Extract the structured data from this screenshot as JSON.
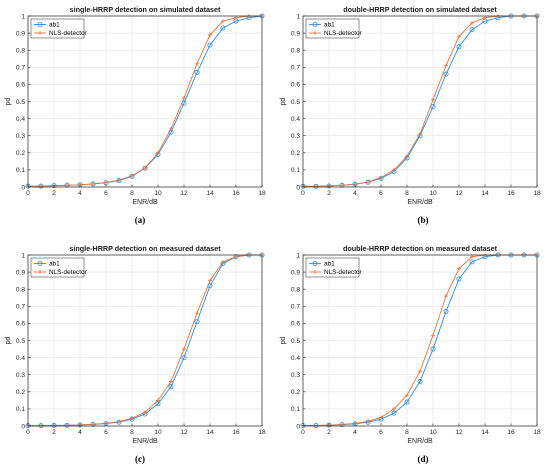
{
  "chart_data": [
    {
      "type": "line",
      "caption": "(a)",
      "title": "single-HRRP detection on simulated dataset",
      "xlabel": "ENR/dB",
      "ylabel": "pd",
      "xlim": [
        0,
        18
      ],
      "ylim": [
        0,
        1
      ],
      "xticks": [
        0,
        2,
        4,
        6,
        8,
        10,
        12,
        14,
        16,
        18
      ],
      "yticks": [
        0,
        0.1,
        0.2,
        0.3,
        0.4,
        0.5,
        0.6,
        0.7,
        0.8,
        0.9,
        1
      ],
      "grid": true,
      "legend_position": "top-left",
      "x": [
        0,
        1,
        2,
        3,
        4,
        5,
        6,
        7,
        8,
        9,
        10,
        11,
        12,
        13,
        14,
        15,
        16,
        17,
        18
      ],
      "series": [
        {
          "name": "ab1",
          "color": "#2f8fd8",
          "marker": "circle",
          "values": [
            0.005,
            0.005,
            0.008,
            0.01,
            0.013,
            0.018,
            0.025,
            0.037,
            0.062,
            0.11,
            0.19,
            0.32,
            0.49,
            0.67,
            0.83,
            0.93,
            0.97,
            0.99,
            1.0
          ]
        },
        {
          "name": "NLS-detector",
          "color": "#e8743b",
          "marker": "plus",
          "values": [
            0.005,
            0.005,
            0.008,
            0.01,
            0.013,
            0.018,
            0.026,
            0.04,
            0.066,
            0.11,
            0.2,
            0.34,
            0.52,
            0.72,
            0.89,
            0.97,
            0.99,
            1.0,
            1.0
          ]
        }
      ]
    },
    {
      "type": "line",
      "caption": "(b)",
      "title": "double-HRRP detection on simulated dataset",
      "xlabel": "ENR/dB",
      "ylabel": "pd",
      "xlim": [
        0,
        18
      ],
      "ylim": [
        0,
        1
      ],
      "xticks": [
        0,
        2,
        4,
        6,
        8,
        10,
        12,
        14,
        16,
        18
      ],
      "yticks": [
        0,
        0.1,
        0.2,
        0.3,
        0.4,
        0.5,
        0.6,
        0.7,
        0.8,
        0.9,
        1
      ],
      "grid": true,
      "legend_position": "top-left",
      "x": [
        0,
        1,
        2,
        3,
        4,
        5,
        6,
        7,
        8,
        9,
        10,
        11,
        12,
        13,
        14,
        15,
        16,
        17,
        18
      ],
      "series": [
        {
          "name": "ab1",
          "color": "#2f8fd8",
          "marker": "circle",
          "values": [
            0.004,
            0.004,
            0.006,
            0.01,
            0.016,
            0.028,
            0.05,
            0.09,
            0.17,
            0.3,
            0.47,
            0.66,
            0.82,
            0.92,
            0.97,
            0.99,
            1.0,
            1.0,
            1.0
          ]
        },
        {
          "name": "NLS-detector",
          "color": "#e8743b",
          "marker": "plus",
          "values": [
            0.004,
            0.004,
            0.006,
            0.01,
            0.016,
            0.03,
            0.055,
            0.1,
            0.18,
            0.31,
            0.51,
            0.71,
            0.88,
            0.96,
            0.99,
            1.0,
            1.0,
            1.0,
            1.0
          ]
        }
      ]
    },
    {
      "type": "line",
      "caption": "(c)",
      "title": "single-HRRP detection on measured dataset",
      "xlabel": "ENR/dB",
      "ylabel": "pd",
      "xlim": [
        0,
        18
      ],
      "ylim": [
        0,
        1
      ],
      "xticks": [
        0,
        2,
        4,
        6,
        8,
        10,
        12,
        14,
        16,
        18
      ],
      "yticks": [
        0,
        0.1,
        0.2,
        0.3,
        0.4,
        0.5,
        0.6,
        0.7,
        0.8,
        0.9,
        1
      ],
      "grid": true,
      "legend_position": "top-left",
      "x": [
        0,
        1,
        2,
        3,
        4,
        5,
        6,
        7,
        8,
        9,
        10,
        11,
        12,
        13,
        14,
        15,
        16,
        17,
        18
      ],
      "series": [
        {
          "name": "ab1",
          "color": "#2f8fd8",
          "marker": "circle",
          "values": [
            0.002,
            0.002,
            0.003,
            0.004,
            0.006,
            0.009,
            0.014,
            0.022,
            0.04,
            0.07,
            0.13,
            0.23,
            0.4,
            0.61,
            0.82,
            0.95,
            0.99,
            1.0,
            1.0
          ]
        },
        {
          "name": "NLS-detector",
          "color": "#e8743b",
          "marker": "plus",
          "values": [
            0.002,
            0.002,
            0.003,
            0.004,
            0.006,
            0.01,
            0.016,
            0.025,
            0.045,
            0.08,
            0.15,
            0.26,
            0.45,
            0.66,
            0.85,
            0.96,
            0.99,
            1.0,
            1.0
          ]
        }
      ]
    },
    {
      "type": "line",
      "caption": "(d)",
      "title": "double-HRRP detection on measured dataset",
      "xlabel": "ENR/dB",
      "ylabel": "pd",
      "xlim": [
        0,
        18
      ],
      "ylim": [
        0,
        1
      ],
      "xticks": [
        0,
        2,
        4,
        6,
        8,
        10,
        12,
        14,
        16,
        18
      ],
      "yticks": [
        0,
        0.1,
        0.2,
        0.3,
        0.4,
        0.5,
        0.6,
        0.7,
        0.8,
        0.9,
        1
      ],
      "grid": true,
      "legend_position": "top-left",
      "x": [
        0,
        1,
        2,
        3,
        4,
        5,
        6,
        7,
        8,
        9,
        10,
        11,
        12,
        13,
        14,
        15,
        16,
        17,
        18
      ],
      "series": [
        {
          "name": "ab1",
          "color": "#2f8fd8",
          "marker": "circle",
          "values": [
            0.003,
            0.003,
            0.005,
            0.008,
            0.013,
            0.022,
            0.04,
            0.075,
            0.14,
            0.26,
            0.45,
            0.67,
            0.86,
            0.96,
            0.99,
            1.0,
            1.0,
            1.0,
            1.0
          ]
        },
        {
          "name": "NLS-detector",
          "color": "#e8743b",
          "marker": "plus",
          "values": [
            0.003,
            0.003,
            0.005,
            0.009,
            0.015,
            0.027,
            0.05,
            0.1,
            0.18,
            0.32,
            0.53,
            0.76,
            0.92,
            0.99,
            1.0,
            1.0,
            1.0,
            1.0,
            1.0
          ]
        }
      ]
    }
  ]
}
